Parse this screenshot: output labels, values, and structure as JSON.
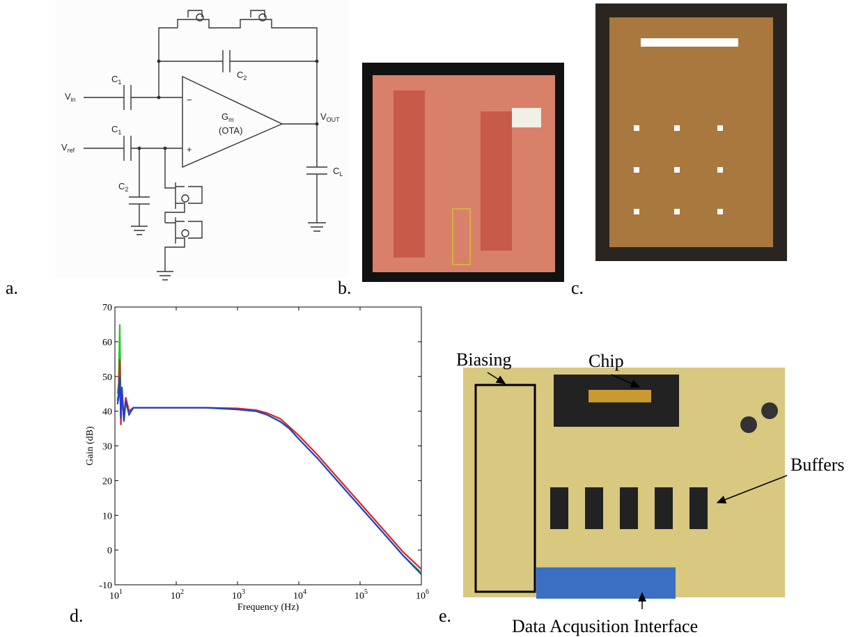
{
  "panels": {
    "a": "a.",
    "b": "b.",
    "c": "c.",
    "d": "d.",
    "e": "e."
  },
  "circuit": {
    "vin": {
      "text": "V",
      "sub": "in"
    },
    "vref": {
      "text": "V",
      "sub": "ref"
    },
    "c1_top": {
      "text": "C",
      "sub": "1"
    },
    "c1_bottom": {
      "text": "C",
      "sub": "1"
    },
    "c2_feedback": {
      "text": "C",
      "sub": "2"
    },
    "c2_ground": {
      "text": "C",
      "sub": "2"
    },
    "gm": {
      "text": "G",
      "sub": "m"
    },
    "ota": "(OTA)",
    "vout": {
      "text": "V",
      "sub": "OUT"
    },
    "cl": {
      "text": "C",
      "sub": "L"
    },
    "minus": "−",
    "plus": "+"
  },
  "chart_data": {
    "type": "line",
    "x_label": "Frequency (Hz)",
    "y_label": "Gain (dB)",
    "log_x": true,
    "xlim": [
      10,
      1000000
    ],
    "ylim": [
      -10,
      70
    ],
    "xticks": [
      {
        "value": 10,
        "label": "10",
        "exp": "1"
      },
      {
        "value": 100,
        "label": "10",
        "exp": "2"
      },
      {
        "value": 1000,
        "label": "10",
        "exp": "3"
      },
      {
        "value": 10000,
        "label": "10",
        "exp": "4"
      },
      {
        "value": 100000,
        "label": "10",
        "exp": "5"
      },
      {
        "value": 1000000,
        "label": "10",
        "exp": "6"
      }
    ],
    "yticks": [
      -10,
      0,
      10,
      20,
      30,
      40,
      50,
      60,
      70
    ],
    "x": [
      11,
      11.5,
      12,
      12.5,
      13,
      14,
      15,
      17,
      20,
      30,
      50,
      100,
      300,
      1000,
      2000,
      3000,
      5000,
      7000,
      10000,
      20000,
      50000,
      100000,
      200000,
      500000,
      1000000
    ],
    "series": [
      {
        "color": "#22cc22",
        "values": [
          45,
          48,
          65,
          40,
          45,
          38,
          42,
          40,
          41,
          41,
          41,
          41,
          41,
          40.5,
          40,
          39,
          37,
          35,
          32,
          26.5,
          18.5,
          12.5,
          6.5,
          -1.5,
          -6.5
        ]
      },
      {
        "color": "#dd2222",
        "values": [
          43,
          45,
          55,
          36,
          46,
          38,
          44,
          40,
          41,
          41,
          41,
          41,
          41,
          40.8,
          40.3,
          39.5,
          37.8,
          35.5,
          33,
          27.5,
          19.5,
          13.5,
          7.5,
          -0.5,
          -5.5
        ]
      },
      {
        "color": "#1f3fd0",
        "values": [
          42,
          44,
          50,
          38,
          47,
          37,
          43,
          39,
          41,
          41,
          41,
          41,
          41,
          40.5,
          40,
          39,
          37,
          35,
          32,
          26.5,
          18.5,
          12.5,
          6.5,
          -1.5,
          -7
        ]
      }
    ]
  },
  "board_annotations": {
    "biasing": "Biasing",
    "chip": "Chip",
    "buffers": "Buffers",
    "daq": "Data Acqusition Interface"
  }
}
